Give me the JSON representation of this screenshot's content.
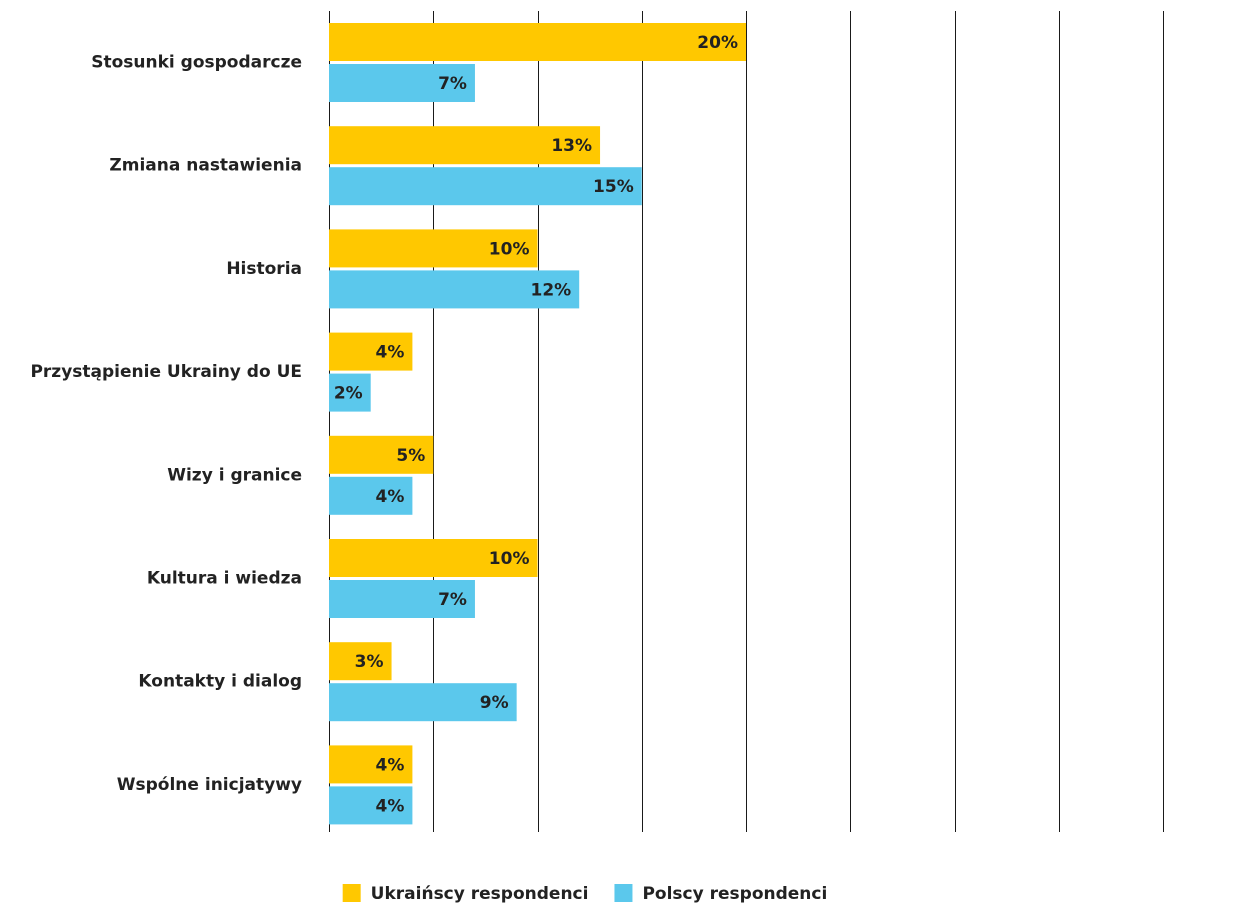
{
  "chart_data": {
    "type": "bar",
    "orientation": "horizontal",
    "title": "",
    "xlabel": "",
    "ylabel": "",
    "xlim": [
      0,
      40
    ],
    "grid": true,
    "legend_position": "bottom",
    "categories": [
      "Stosunki gospodarcze",
      "Zmiana nastawienia",
      "Historia",
      "Przystąpienie Ukrainy do UE",
      "Wizy i granice",
      "Kultura i wiedza",
      "Kontakty i dialog",
      "Wspólne inicjatywy"
    ],
    "series": [
      {
        "name": "Ukraińscy respondenci",
        "color": "#FFC800",
        "values": [
          20,
          13,
          10,
          4,
          5,
          10,
          3,
          4
        ],
        "labels": [
          "20%",
          "13%",
          "10%",
          "4%",
          "5%",
          "10%",
          "3%",
          "4%"
        ]
      },
      {
        "name": "Polscy respondenci",
        "color": "#5BC8EC",
        "values": [
          7,
          15,
          12,
          2,
          4,
          7,
          9,
          4
        ],
        "labels": [
          "7%",
          "15%",
          "12%",
          "2%",
          "4%",
          "7%",
          "9%",
          "4%"
        ]
      }
    ]
  }
}
